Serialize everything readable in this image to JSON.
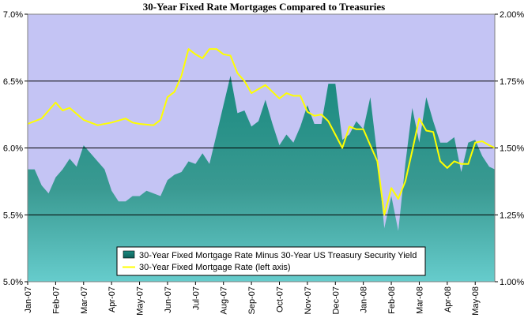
{
  "chart_data": {
    "type": "area",
    "title": "30-Year Fixed Rate Mortgages Compared to Treasuries",
    "left_axis": {
      "ylim": [
        5.0,
        7.0
      ],
      "ticks": [
        5.0,
        5.5,
        6.0,
        6.5,
        7.0
      ],
      "tick_labels": [
        "5.0%",
        "5.5%",
        "6.0%",
        "6.5%",
        "7.0%"
      ]
    },
    "right_axis": {
      "ylim": [
        1.0,
        2.0
      ],
      "ticks": [
        1.0,
        1.25,
        1.5,
        1.75,
        2.0
      ],
      "tick_labels": [
        "1.00%",
        "1.25%",
        "1.50%",
        "1.75%",
        "2.00%"
      ]
    },
    "x_tick_labels": [
      "Jan-07",
      "Feb-07",
      "Mar-07",
      "Apr-07",
      "May-07",
      "Jun-07",
      "Jul-07",
      "Aug-07",
      "Sep-07",
      "Oct-07",
      "Nov-07",
      "Dec-07",
      "Jan-08",
      "Feb-08",
      "Mar-08",
      "Apr-08",
      "May-08"
    ],
    "x_range_months": [
      0,
      16.7
    ],
    "grid": "horizontal",
    "legend_position": "bottom-center",
    "colors": {
      "plot_background": "#c4c4f4",
      "area_top": "#1a8a80",
      "area_bottom": "#66cccc",
      "line": "#ffff00",
      "gridline": "#000000"
    },
    "series": [
      {
        "name": "30-Year Fixed Mortgage Rate Minus 30-Year US Treasury Security Yield",
        "axis": "right",
        "kind": "area",
        "x": [
          0,
          0.25,
          0.5,
          0.75,
          1.0,
          1.25,
          1.5,
          1.75,
          2.0,
          2.25,
          2.5,
          2.75,
          3.0,
          3.25,
          3.5,
          3.75,
          4.0,
          4.25,
          4.5,
          4.75,
          5.0,
          5.25,
          5.5,
          5.75,
          6.0,
          6.25,
          6.5,
          6.75,
          7.0,
          7.25,
          7.5,
          7.75,
          8.0,
          8.25,
          8.5,
          8.75,
          9.0,
          9.25,
          9.5,
          9.75,
          10.0,
          10.25,
          10.5,
          10.75,
          11.0,
          11.25,
          11.5,
          11.75,
          12.0,
          12.25,
          12.5,
          12.75,
          13.0,
          13.25,
          13.5,
          13.75,
          14.0,
          14.25,
          14.5,
          14.75,
          15.0,
          15.25,
          15.5,
          15.75,
          16.0,
          16.25,
          16.5,
          16.7
        ],
        "values": [
          1.42,
          1.42,
          1.36,
          1.33,
          1.39,
          1.42,
          1.46,
          1.43,
          1.51,
          1.48,
          1.45,
          1.42,
          1.34,
          1.3,
          1.3,
          1.32,
          1.32,
          1.34,
          1.33,
          1.32,
          1.38,
          1.4,
          1.41,
          1.45,
          1.44,
          1.48,
          1.44,
          1.55,
          1.66,
          1.77,
          1.63,
          1.64,
          1.58,
          1.6,
          1.68,
          1.59,
          1.51,
          1.55,
          1.52,
          1.58,
          1.66,
          1.59,
          1.59,
          1.74,
          1.74,
          1.53,
          1.55,
          1.6,
          1.57,
          1.69,
          1.47,
          1.2,
          1.32,
          1.19,
          1.44,
          1.65,
          1.52,
          1.69,
          1.6,
          1.52,
          1.52,
          1.54,
          1.41,
          1.52,
          1.53,
          1.47,
          1.43,
          1.42
        ]
      },
      {
        "name": "30-Year Fixed Mortgage Rate (left axis)",
        "axis": "left",
        "kind": "line",
        "x": [
          0,
          0.5,
          1.0,
          1.25,
          1.5,
          2.0,
          2.5,
          3.0,
          3.5,
          3.75,
          4.0,
          4.5,
          4.75,
          5.0,
          5.25,
          5.5,
          5.75,
          6.0,
          6.25,
          6.5,
          6.75,
          7.0,
          7.25,
          7.5,
          7.75,
          8.0,
          8.5,
          8.75,
          9.0,
          9.25,
          9.5,
          9.75,
          10.0,
          10.25,
          10.5,
          10.75,
          11.0,
          11.25,
          11.5,
          11.75,
          12.0,
          12.25,
          12.5,
          12.75,
          13.0,
          13.25,
          13.5,
          13.75,
          14.0,
          14.25,
          14.5,
          14.75,
          15.0,
          15.25,
          15.5,
          15.75,
          16.0,
          16.25,
          16.5,
          16.7
        ],
        "values": [
          6.18,
          6.22,
          6.34,
          6.28,
          6.3,
          6.21,
          6.17,
          6.19,
          6.22,
          6.19,
          6.18,
          6.17,
          6.21,
          6.38,
          6.42,
          6.54,
          6.74,
          6.7,
          6.67,
          6.74,
          6.74,
          6.7,
          6.69,
          6.56,
          6.5,
          6.41,
          6.47,
          6.42,
          6.37,
          6.41,
          6.39,
          6.39,
          6.27,
          6.24,
          6.25,
          6.2,
          6.1,
          6.0,
          6.16,
          6.14,
          6.14,
          6.02,
          5.9,
          5.5,
          5.7,
          5.62,
          5.75,
          5.98,
          6.22,
          6.13,
          6.12,
          5.9,
          5.85,
          5.9,
          5.88,
          5.88,
          6.04,
          6.05,
          6.02,
          6.0
        ]
      }
    ]
  }
}
